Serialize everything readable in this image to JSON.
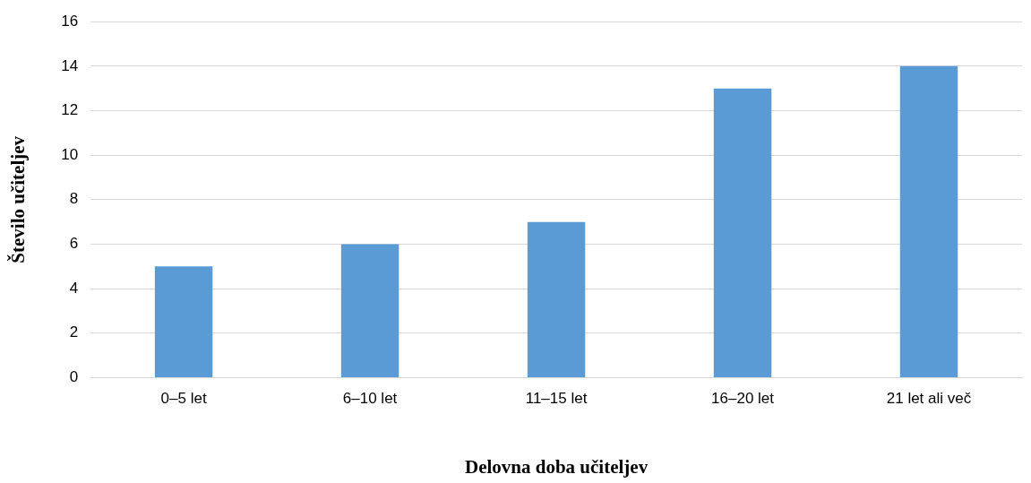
{
  "chart_data": {
    "type": "bar",
    "xlabel": "Delovna doba učiteljev",
    "ylabel": "Število učiteljev",
    "categories": [
      "0–5 let",
      "6–10 let",
      "11–15 let",
      "16–20 let",
      "21 let ali več"
    ],
    "values": [
      5,
      6,
      7,
      13,
      14
    ],
    "color": "#5b9bd5",
    "ylim": [
      0,
      16
    ],
    "yticks": [
      0,
      2,
      4,
      6,
      8,
      10,
      12,
      14,
      16
    ],
    "grid": "y",
    "legend": false
  }
}
